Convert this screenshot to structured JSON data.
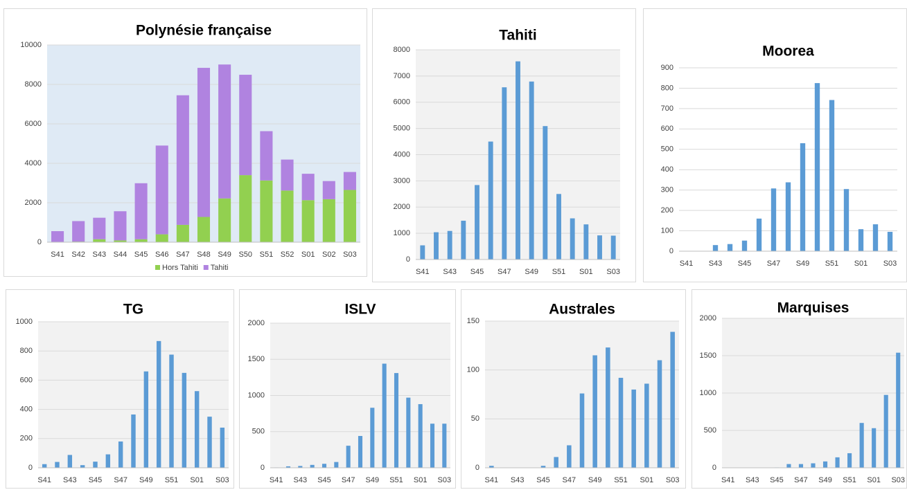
{
  "chart_data": [
    {
      "type": "bar",
      "title": "Polynésie française",
      "stacked": true,
      "categories": [
        "S41",
        "S42",
        "S43",
        "S44",
        "S45",
        "S46",
        "S47",
        "S48",
        "S49",
        "S50",
        "S51",
        "S52",
        "S01",
        "S02",
        "S03"
      ],
      "series": [
        {
          "name": "Hors Tahiti",
          "color": "#92d050",
          "values": [
            20,
            30,
            150,
            90,
            150,
            400,
            880,
            1280,
            2220,
            3400,
            3130,
            2620,
            2130,
            2180,
            2650
          ]
        },
        {
          "name": "Tahiti",
          "color": "#b083e0",
          "values": [
            540,
            1040,
            1090,
            1480,
            2840,
            4500,
            6570,
            7560,
            6790,
            5090,
            2500,
            1570,
            1340,
            920,
            910
          ]
        }
      ],
      "ylim": [
        0,
        10000
      ],
      "yticks": [
        0,
        2000,
        4000,
        6000,
        8000,
        10000
      ],
      "grid": true,
      "plot_background": "#dfeaf5",
      "legend": "bottom"
    },
    {
      "type": "bar",
      "title": "Tahiti",
      "color": "#5b9bd5",
      "categories": [
        "S41",
        null,
        "S43",
        null,
        "S45",
        null,
        "S47",
        null,
        "S49",
        null,
        "S51",
        null,
        "S01",
        null,
        "S03"
      ],
      "values": [
        540,
        1040,
        1090,
        1480,
        2840,
        4500,
        6570,
        7560,
        6790,
        5090,
        2500,
        1570,
        1340,
        920,
        910
      ],
      "ylim": [
        0,
        8000
      ],
      "yticks": [
        0,
        1000,
        2000,
        3000,
        4000,
        5000,
        6000,
        7000,
        8000
      ],
      "grid": true,
      "plot_background": "#f2f2f2"
    },
    {
      "type": "bar",
      "title": "Moorea",
      "color": "#5b9bd5",
      "categories": [
        "S41",
        null,
        "S43",
        null,
        "S45",
        null,
        "S47",
        null,
        "S49",
        null,
        "S51",
        null,
        "S01",
        null,
        "S03"
      ],
      "values": [
        0,
        0,
        30,
        35,
        52,
        160,
        308,
        338,
        530,
        825,
        742,
        305,
        108,
        132,
        95
      ],
      "ylim": [
        0,
        900
      ],
      "yticks": [
        0,
        100,
        200,
        300,
        400,
        500,
        600,
        700,
        800,
        900
      ],
      "grid": true,
      "plot_background": "#ffffff"
    },
    {
      "type": "bar",
      "title": "TG",
      "color": "#5b9bd5",
      "categories": [
        "S41",
        null,
        "S43",
        null,
        "S45",
        null,
        "S47",
        null,
        "S49",
        null,
        "S51",
        null,
        "S01",
        null,
        "S03"
      ],
      "values": [
        25,
        40,
        88,
        18,
        42,
        92,
        180,
        365,
        660,
        868,
        775,
        650,
        525,
        350,
        275
      ],
      "ylim": [
        0,
        1000
      ],
      "yticks": [
        0,
        200,
        400,
        600,
        800,
        1000
      ],
      "grid": true,
      "plot_background": "#f2f2f2"
    },
    {
      "type": "bar",
      "title": "ISLV",
      "color": "#5b9bd5",
      "categories": [
        "S41",
        null,
        "S43",
        null,
        "S45",
        null,
        "S47",
        null,
        "S49",
        null,
        "S51",
        null,
        "S01",
        null,
        "S03"
      ],
      "values": [
        5,
        20,
        25,
        40,
        55,
        80,
        305,
        440,
        830,
        1440,
        1310,
        970,
        880,
        610,
        610
      ],
      "ylim": [
        0,
        2000
      ],
      "yticks": [
        0,
        500,
        1000,
        1500,
        2000
      ],
      "grid": true,
      "plot_background": "#f2f2f2"
    },
    {
      "type": "bar",
      "title": "Australes",
      "color": "#5b9bd5",
      "categories": [
        "S41",
        null,
        "S43",
        null,
        "S45",
        null,
        "S47",
        null,
        "S49",
        null,
        "S51",
        null,
        "S01",
        null,
        "S03"
      ],
      "values": [
        2,
        0,
        0,
        0,
        2,
        11,
        23,
        76,
        115,
        123,
        92,
        80,
        86,
        110,
        139
      ],
      "ylim": [
        0,
        150
      ],
      "yticks": [
        0,
        50,
        100,
        150
      ],
      "grid": true,
      "plot_background": "#f2f2f2"
    },
    {
      "type": "bar",
      "title": "Marquises",
      "color": "#5b9bd5",
      "categories": [
        "S41",
        null,
        "S43",
        null,
        "S45",
        null,
        "S47",
        null,
        "S49",
        null,
        "S51",
        null,
        "S01",
        null,
        "S03"
      ],
      "values": [
        0,
        0,
        0,
        0,
        5,
        50,
        50,
        60,
        85,
        140,
        195,
        600,
        530,
        975,
        1540
      ],
      "ylim": [
        0,
        2000
      ],
      "yticks": [
        0,
        500,
        1000,
        1500,
        2000
      ],
      "grid": true,
      "plot_background": "#f2f2f2"
    }
  ]
}
